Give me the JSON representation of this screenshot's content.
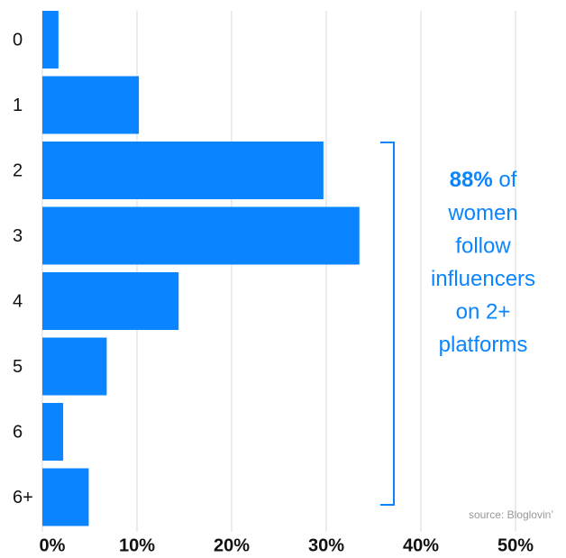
{
  "chart_data": {
    "type": "hbar",
    "categories": [
      "0",
      "1",
      "2",
      "3",
      "4",
      "5",
      "6",
      "6+"
    ],
    "values": [
      1.7,
      10.2,
      29.7,
      33.5,
      14.4,
      6.8,
      2.2,
      4.9
    ],
    "color": "#0a84ff",
    "xlim": [
      0,
      50
    ],
    "xticks": [
      {
        "value": 0,
        "label": "0%"
      },
      {
        "value": 10,
        "label": "10%"
      },
      {
        "value": 20,
        "label": "20%"
      },
      {
        "value": 30,
        "label": "30%"
      },
      {
        "value": 40,
        "label": "40%"
      },
      {
        "value": 50,
        "label": "50%"
      }
    ],
    "grid": true,
    "annotation": {
      "highlight": "88%",
      "lines": [
        "of",
        "women",
        "follow",
        "influencers",
        "on 2+",
        "platforms"
      ],
      "color": "#0a84ff"
    },
    "source": "source: Bloglovin’"
  }
}
